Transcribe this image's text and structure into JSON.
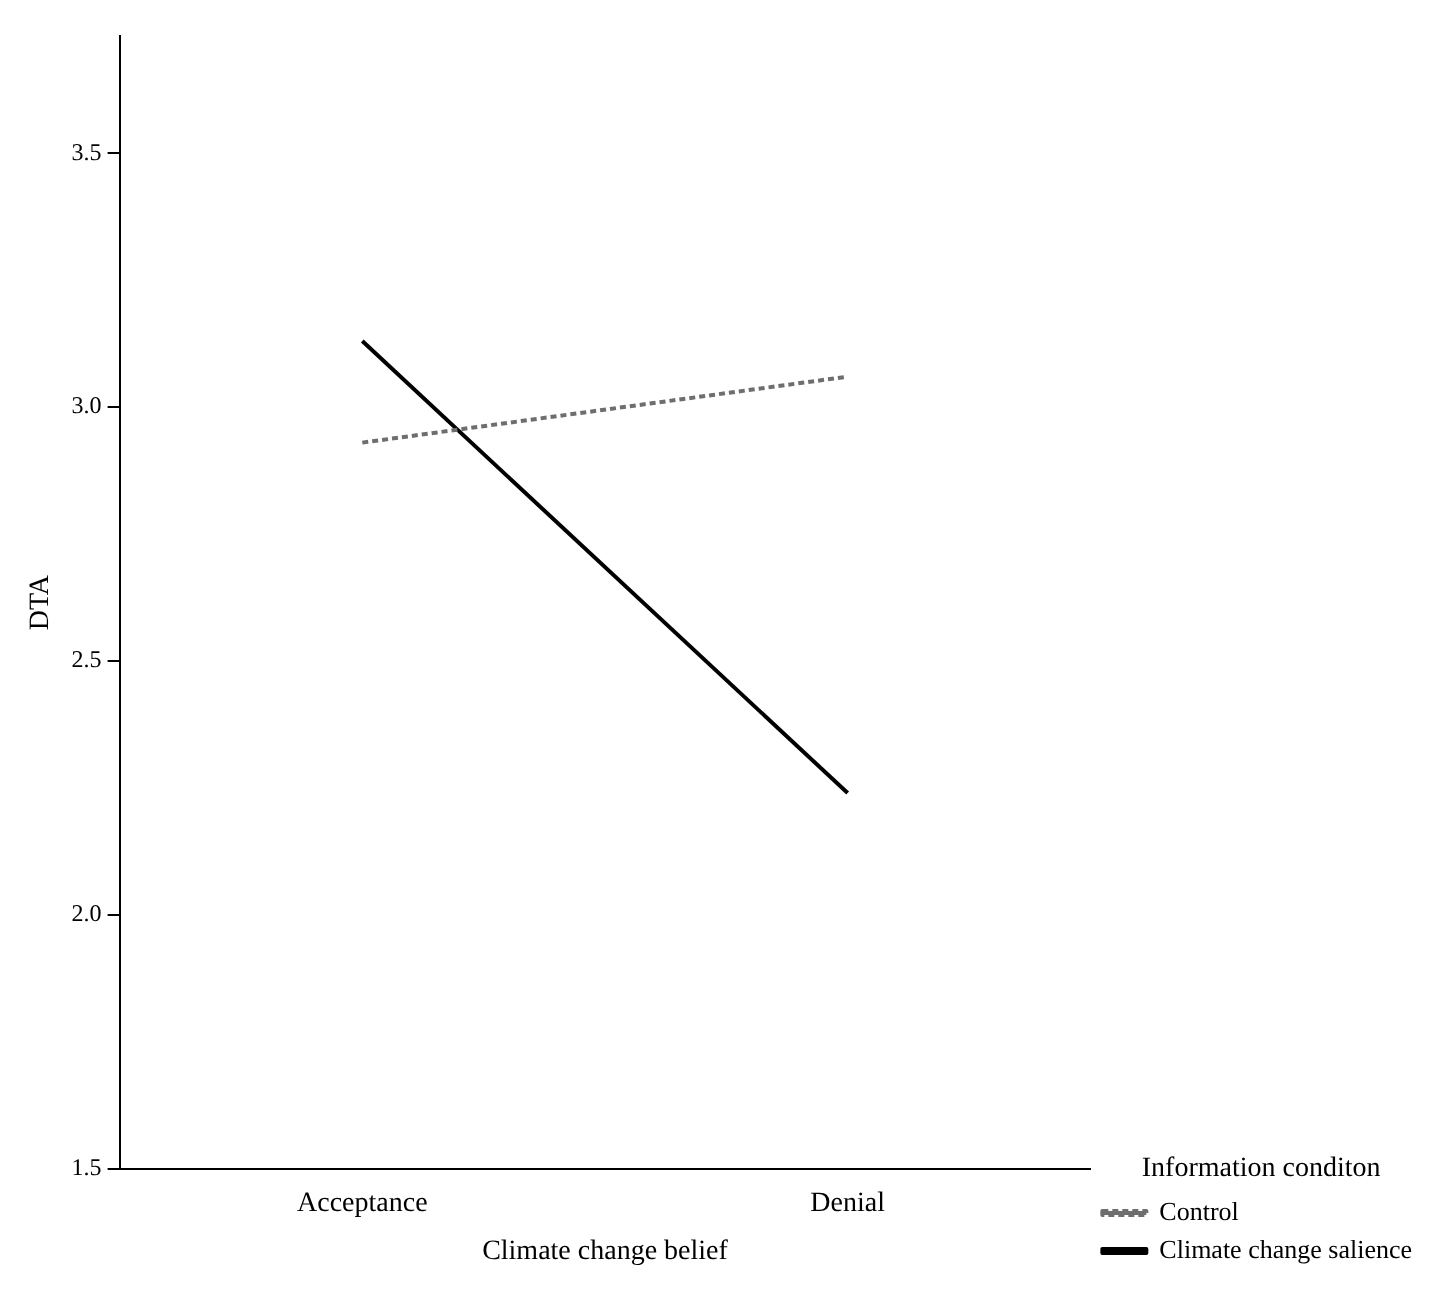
{
  "chart_data": {
    "type": "line",
    "xlabel": "Climate change belief",
    "ylabel": "DTA",
    "legend_title": "Information conditon",
    "categories": [
      "Acceptance",
      "Denial"
    ],
    "series": [
      {
        "name": "Control",
        "color": "#6e6e6e",
        "line_style": "dotted",
        "values": [
          2.93,
          3.06
        ]
      },
      {
        "name": "Climate change salience",
        "color": "#000000",
        "line_style": "solid",
        "values": [
          3.13,
          2.24
        ]
      }
    ],
    "ylim": [
      1.5,
      3.73
    ],
    "yticks": [
      {
        "value": 1.5,
        "label": "1.5"
      },
      {
        "value": 2,
        "label": "2.0"
      },
      {
        "value": 2.5,
        "label": "2.5"
      },
      {
        "value": 3,
        "label": "3.0"
      },
      {
        "value": 3.5,
        "label": "3.5"
      }
    ],
    "grid": false,
    "legend": "right",
    "marker": "none"
  }
}
